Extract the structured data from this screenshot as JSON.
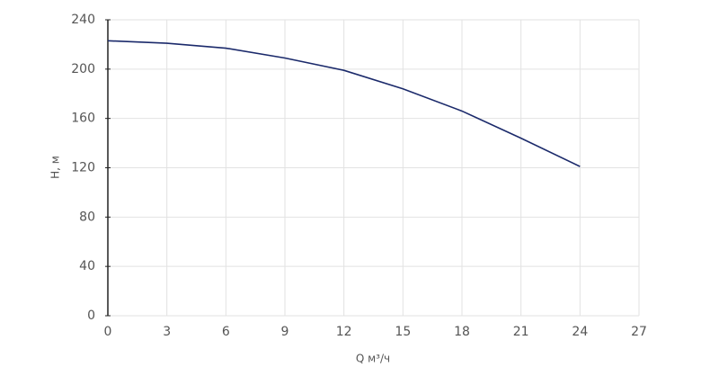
{
  "chart_data": {
    "type": "line",
    "x_label": "Q м³/ч",
    "y_label": "H, м",
    "x": [
      0,
      3,
      6,
      9,
      12,
      15,
      18,
      21,
      24
    ],
    "values": [
      223,
      221,
      217,
      209,
      199,
      184,
      166,
      144,
      121
    ],
    "color": "#1b2a6b",
    "xlim": [
      0,
      27
    ],
    "ylim": [
      0,
      240
    ],
    "xticks": [
      0,
      3,
      6,
      9,
      12,
      15,
      18,
      21,
      24,
      27
    ],
    "yticks": [
      0,
      40,
      80,
      120,
      160,
      200,
      240
    ],
    "grid": true
  }
}
